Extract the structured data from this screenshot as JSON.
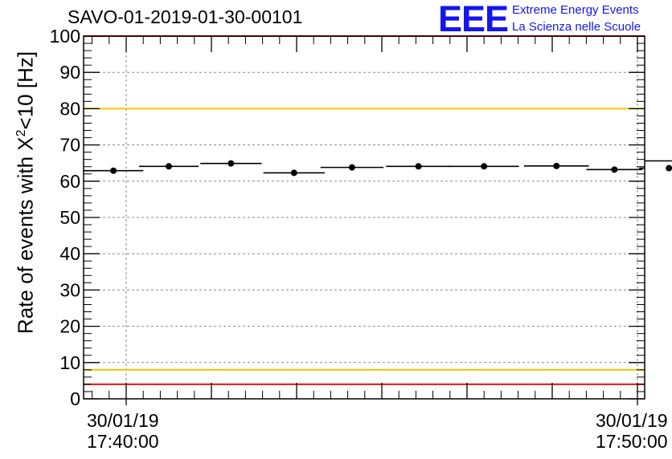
{
  "chart_data": {
    "type": "scatter",
    "title": "SAVO-01-2019-01-30-00101",
    "ylabel": {
      "prefix": "Rate of events with X",
      "sup": "2",
      "suffix": "<10 [Hz]"
    },
    "xlabel": "",
    "ylim": [
      0,
      100
    ],
    "y_ticks": [
      "0",
      "10",
      "20",
      "30",
      "40",
      "50",
      "60",
      "70",
      "80",
      "90",
      "100"
    ],
    "x_tick_labels": [
      {
        "date": "30/01/19",
        "time": "17:40:00"
      },
      {
        "date": "30/01/19",
        "time": "17:50:00"
      }
    ],
    "grid": true,
    "series": [
      {
        "name": "rate",
        "x_seconds_from_1740": [
          -15,
          50,
          123,
          197,
          265,
          343,
          420,
          505,
          573,
          637,
          714
        ],
        "bin_half_width_seconds": [
          35,
          35,
          36,
          36,
          37,
          38,
          41,
          38,
          33,
          35,
          40
        ],
        "values": [
          62.9,
          64.1,
          64.9,
          62.3,
          63.8,
          64.1,
          64.1,
          64.2,
          63.2,
          63.6,
          65.6
        ],
        "errors": [
          0.6,
          0.6,
          0.6,
          0.6,
          0.6,
          0.6,
          0.6,
          0.6,
          0.6,
          0.6,
          0.6
        ]
      }
    ],
    "reference_lines": [
      {
        "value": 100,
        "color": "#ee1111"
      },
      {
        "value": 80,
        "color": "#f0c800"
      },
      {
        "value": 8,
        "color": "#f0c800"
      },
      {
        "value": 4,
        "color": "#ee1111"
      }
    ]
  },
  "logo": {
    "mark": "EEE",
    "line1": "Extreme Energy Events",
    "line2": "La Scienza nelle Scuole",
    "color": "#1515ee"
  }
}
